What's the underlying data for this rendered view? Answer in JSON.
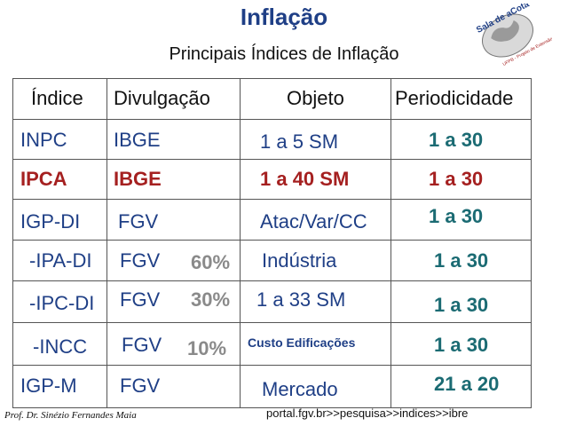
{
  "title": "Inflação",
  "subtitle": "Principais Índices de Inflação",
  "logo": {
    "text": "Sala de aCota",
    "small_text": "UFPB - Projeto de Extensão"
  },
  "table": {
    "headers": [
      "Índice",
      "Divulgação",
      "Objeto",
      "Periodicidade"
    ],
    "rows": [
      {
        "indice": "INPC",
        "divulgacao": "IBGE",
        "peso": "",
        "objeto": "1 a 5 SM",
        "periodicidade": "1 a 30"
      },
      {
        "indice": "IPCA",
        "divulgacao": "IBGE",
        "peso": "",
        "objeto": "1 a 40 SM",
        "periodicidade": "1 a 30"
      },
      {
        "indice": "IGP-DI",
        "divulgacao": "FGV",
        "peso": "",
        "objeto": "Atac/Var/CC",
        "periodicidade": "1 a 30"
      },
      {
        "indice": "-IPA-DI",
        "divulgacao": "FGV",
        "peso": "60%",
        "objeto": "Indústria",
        "periodicidade": "1 a 30"
      },
      {
        "indice": "-IPC-DI",
        "divulgacao": "FGV",
        "peso": "30%",
        "objeto": "1 a 33 SM",
        "periodicidade": "1 a 30"
      },
      {
        "indice": "-INCC",
        "divulgacao": "FGV",
        "peso": "10%",
        "objeto": "Custo Edificações",
        "periodicidade": "1 a 30"
      },
      {
        "indice": "IGP-M",
        "divulgacao": "FGV",
        "peso": "",
        "objeto": "Mercado",
        "periodicidade": "21 a 20"
      }
    ]
  },
  "footer": {
    "author": "Prof. Dr. Sinézio Fernandes Maia",
    "source": "portal.fgv.br>>pesquisa>>indices>>ibre"
  },
  "colors": {
    "title": "#1f3f86",
    "highlight": "#a52020",
    "period": "#1b6b73",
    "weight": "#8a8a8a"
  }
}
